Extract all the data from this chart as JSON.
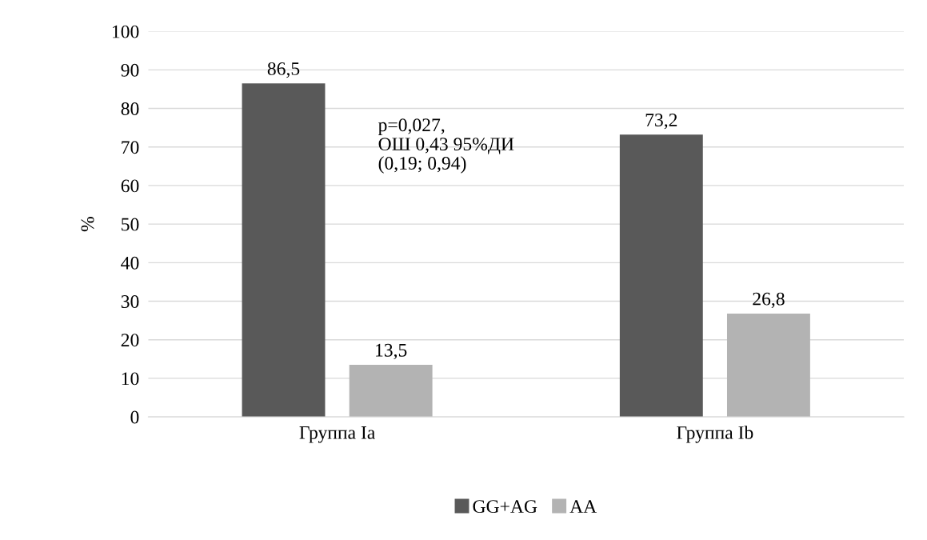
{
  "chart_data": {
    "type": "bar",
    "ylabel": "%",
    "categories": [
      "Группа Ia",
      "Группа Ib"
    ],
    "series": [
      {
        "name": "GG+AG",
        "color": "#595959",
        "values": [
          86.5,
          73.2
        ],
        "value_labels": [
          "86,5",
          "73,2"
        ]
      },
      {
        "name": "AA",
        "color": "#b3b3b3",
        "values": [
          13.5,
          26.8
        ],
        "value_labels": [
          "13,5",
          "26,8"
        ]
      }
    ],
    "ylim": [
      0,
      100
    ],
    "yticks": [
      0,
      10,
      20,
      30,
      40,
      50,
      60,
      70,
      80,
      90,
      100
    ],
    "grid": "y",
    "legend": "bottom",
    "annotations": [
      "p=0,027,\nОШ 0,43 95%ДИ\n(0,19; 0,94)"
    ]
  }
}
